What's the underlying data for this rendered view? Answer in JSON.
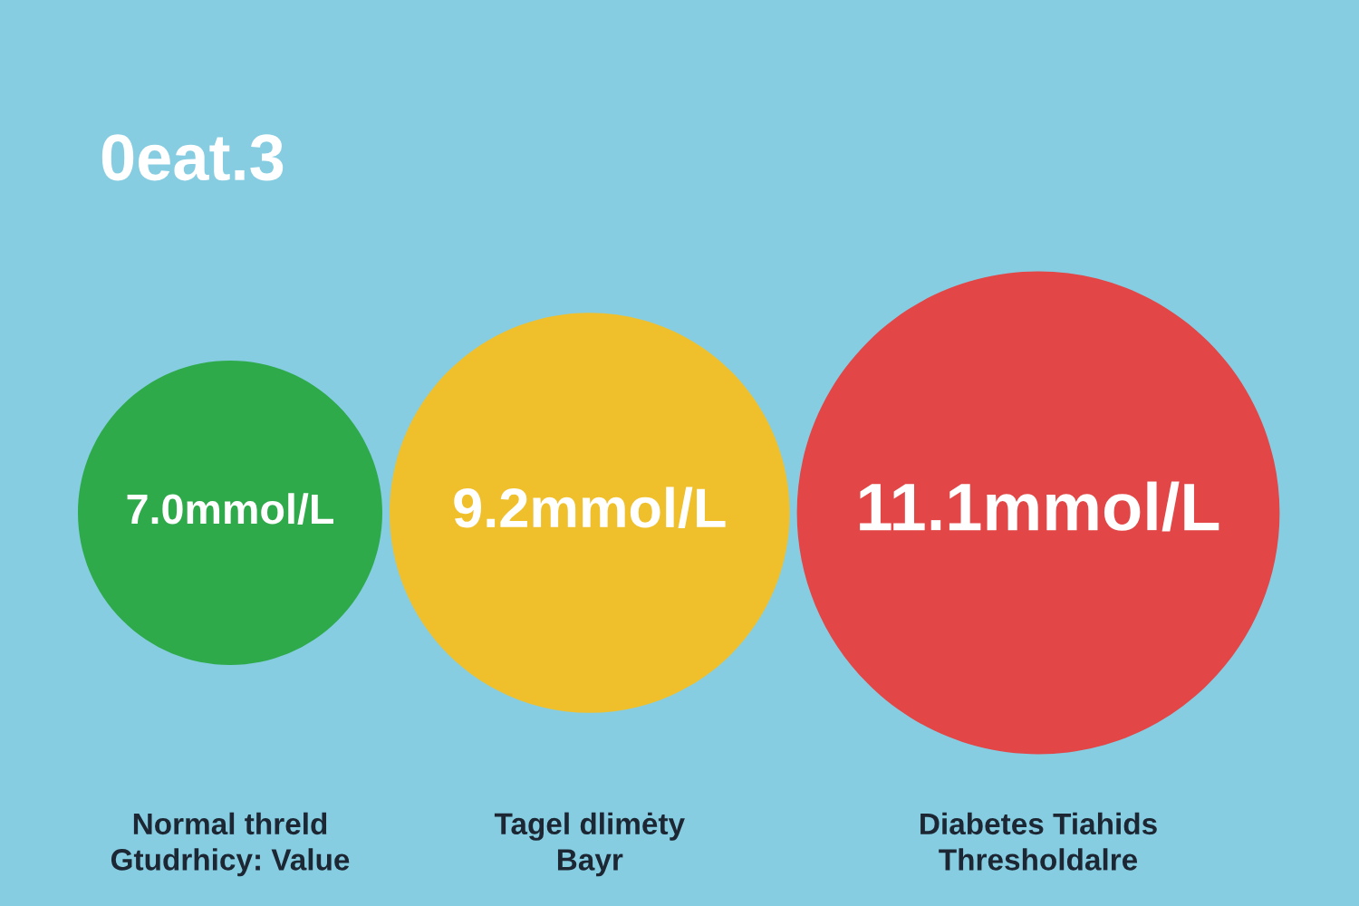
{
  "chart_data": {
    "type": "other",
    "title": "0eat.3",
    "categories": [
      "Normal threld\nGtudrhicy: Value",
      "Tagel dlimėty\nBayr",
      "Diabetes Tiahids\nThresholdalre"
    ],
    "values": [
      7.0,
      9.2,
      11.1
    ],
    "value_labels": [
      "7.0mmol/L",
      "9.2mmol/L",
      "11.1mmol/L"
    ],
    "colors": [
      "#2eaa4a",
      "#f0c02c",
      "#e24646"
    ]
  }
}
